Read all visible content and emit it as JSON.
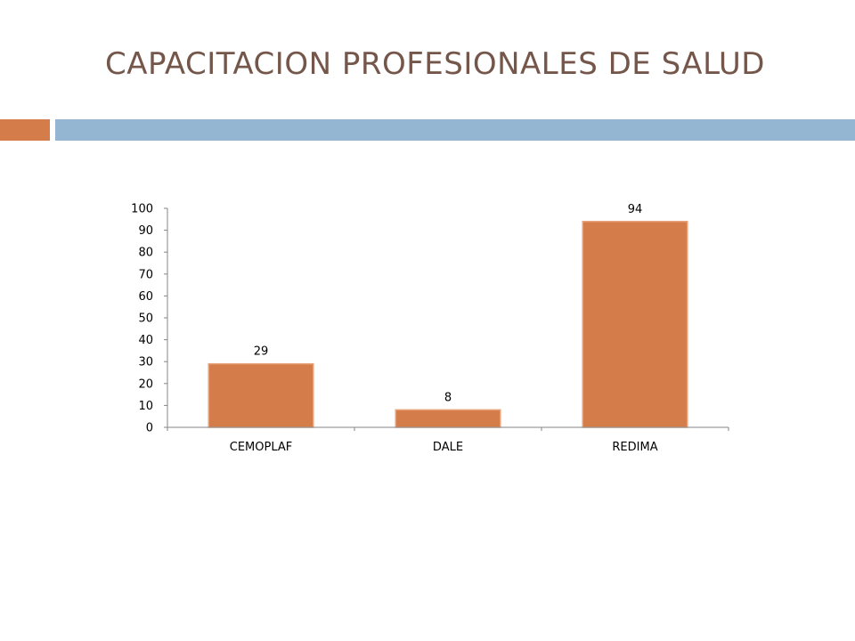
{
  "slide": {
    "title": "CAPACITACION PROFESIONALES DE SALUD"
  },
  "colors": {
    "title": "#74574a",
    "accent_orange": "#d57d4a",
    "accent_blue": "#94b6d2",
    "bar_fill": "#d57d4a",
    "bar_highlight": "#e9a47c",
    "axis": "#868686"
  },
  "chart_data": {
    "type": "bar",
    "title": "",
    "xlabel": "",
    "ylabel": "",
    "categories": [
      "CEMOPLAF",
      "DALE",
      "REDIMA"
    ],
    "values": [
      29,
      8,
      94
    ],
    "data_labels": [
      "29",
      "8",
      "94"
    ],
    "ylim": [
      0,
      100
    ],
    "yticks": [
      0,
      10,
      20,
      30,
      40,
      50,
      60,
      70,
      80,
      90,
      100
    ],
    "grid": false,
    "legend": "none"
  }
}
